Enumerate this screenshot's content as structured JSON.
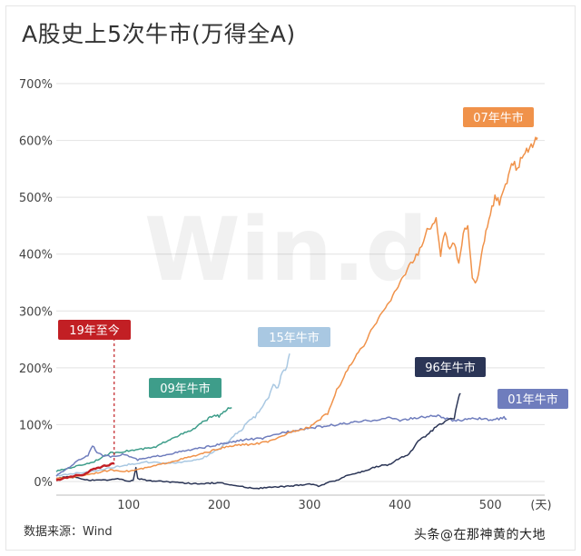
{
  "title": "A股史上5次牛市(万得全A)",
  "source": "数据来源：Wind",
  "watermark_text": "Win.d",
  "footer_mark": "头条@在那神黄的大地",
  "chart_data": {
    "type": "line",
    "title": "A股史上5次牛市(万得全A)",
    "xlabel": "(天)",
    "ylabel": "",
    "xlim": [
      20,
      560
    ],
    "ylim": [
      -8,
      700
    ],
    "x_ticks": [
      100,
      200,
      300,
      400,
      500
    ],
    "y_ticks": [
      0,
      100,
      200,
      300,
      400,
      500,
      600,
      700
    ],
    "y_tick_labels": [
      "0%",
      "100%",
      "200%",
      "300%",
      "400%",
      "500%",
      "600%",
      "700%"
    ],
    "grid": true,
    "series": [
      {
        "name": "07年牛市",
        "color": "#f0924a",
        "points": [
          [
            20,
            5
          ],
          [
            40,
            8
          ],
          [
            60,
            14
          ],
          [
            80,
            20
          ],
          [
            100,
            18
          ],
          [
            120,
            24
          ],
          [
            140,
            32
          ],
          [
            160,
            40
          ],
          [
            180,
            48
          ],
          [
            200,
            58
          ],
          [
            220,
            64
          ],
          [
            240,
            66
          ],
          [
            260,
            72
          ],
          [
            280,
            88
          ],
          [
            300,
            96
          ],
          [
            320,
            120
          ],
          [
            330,
            160
          ],
          [
            340,
            190
          ],
          [
            350,
            218
          ],
          [
            360,
            238
          ],
          [
            370,
            270
          ],
          [
            380,
            300
          ],
          [
            390,
            318
          ],
          [
            400,
            350
          ],
          [
            410,
            380
          ],
          [
            420,
            400
          ],
          [
            430,
            440
          ],
          [
            440,
            460
          ],
          [
            445,
            400
          ],
          [
            450,
            440
          ],
          [
            455,
            405
          ],
          [
            460,
            420
          ],
          [
            465,
            380
          ],
          [
            470,
            440
          ],
          [
            475,
            450
          ],
          [
            480,
            360
          ],
          [
            485,
            350
          ],
          [
            490,
            395
          ],
          [
            495,
            440
          ],
          [
            500,
            470
          ],
          [
            505,
            500
          ],
          [
            510,
            490
          ],
          [
            515,
            510
          ],
          [
            520,
            540
          ],
          [
            525,
            560
          ],
          [
            530,
            550
          ],
          [
            535,
            575
          ],
          [
            540,
            580
          ],
          [
            545,
            590
          ],
          [
            550,
            600
          ],
          [
            552,
            605
          ]
        ]
      },
      {
        "name": "96年牛市",
        "color": "#2b3556",
        "points": [
          [
            20,
            5
          ],
          [
            30,
            8
          ],
          [
            40,
            7
          ],
          [
            50,
            4
          ],
          [
            60,
            2
          ],
          [
            70,
            2
          ],
          [
            80,
            3
          ],
          [
            90,
            5
          ],
          [
            100,
            0
          ],
          [
            105,
            2
          ],
          [
            108,
            25
          ],
          [
            110,
            5
          ],
          [
            120,
            2
          ],
          [
            140,
            0
          ],
          [
            160,
            -3
          ],
          [
            180,
            -4
          ],
          [
            200,
            -2
          ],
          [
            220,
            -8
          ],
          [
            240,
            -12
          ],
          [
            260,
            -10
          ],
          [
            280,
            -8
          ],
          [
            300,
            -4
          ],
          [
            310,
            -8
          ],
          [
            320,
            -2
          ],
          [
            330,
            2
          ],
          [
            340,
            10
          ],
          [
            350,
            14
          ],
          [
            360,
            18
          ],
          [
            370,
            24
          ],
          [
            380,
            28
          ],
          [
            390,
            30
          ],
          [
            400,
            42
          ],
          [
            410,
            48
          ],
          [
            420,
            70
          ],
          [
            430,
            82
          ],
          [
            440,
            96
          ],
          [
            450,
            105
          ],
          [
            460,
            112
          ],
          [
            465,
            150
          ],
          [
            467,
            155
          ]
        ]
      },
      {
        "name": "15年牛市",
        "color": "#a9c8e2",
        "points": [
          [
            20,
            10
          ],
          [
            40,
            14
          ],
          [
            60,
            18
          ],
          [
            80,
            24
          ],
          [
            100,
            30
          ],
          [
            120,
            34
          ],
          [
            140,
            32
          ],
          [
            160,
            34
          ],
          [
            180,
            40
          ],
          [
            190,
            48
          ],
          [
            200,
            58
          ],
          [
            210,
            70
          ],
          [
            220,
            86
          ],
          [
            225,
            90
          ],
          [
            230,
            104
          ],
          [
            240,
            114
          ],
          [
            250,
            138
          ],
          [
            255,
            150
          ],
          [
            260,
            170
          ],
          [
            265,
            165
          ],
          [
            270,
            195
          ],
          [
            275,
            200
          ],
          [
            278,
            225
          ]
        ]
      },
      {
        "name": "09年牛市",
        "color": "#3e9d8a",
        "points": [
          [
            20,
            18
          ],
          [
            40,
            26
          ],
          [
            60,
            34
          ],
          [
            80,
            50
          ],
          [
            100,
            54
          ],
          [
            110,
            56
          ],
          [
            120,
            58
          ],
          [
            130,
            60
          ],
          [
            140,
            70
          ],
          [
            150,
            78
          ],
          [
            160,
            84
          ],
          [
            170,
            90
          ],
          [
            175,
            96
          ],
          [
            180,
            102
          ],
          [
            185,
            108
          ],
          [
            190,
            112
          ],
          [
            195,
            118
          ],
          [
            200,
            114
          ],
          [
            205,
            122
          ],
          [
            210,
            128
          ],
          [
            214,
            130
          ]
        ]
      },
      {
        "name": "01年牛市",
        "color": "#6f7dbd",
        "points": [
          [
            20,
            10
          ],
          [
            35,
            26
          ],
          [
            45,
            38
          ],
          [
            55,
            46
          ],
          [
            60,
            64
          ],
          [
            65,
            52
          ],
          [
            70,
            46
          ],
          [
            80,
            44
          ],
          [
            95,
            48
          ],
          [
            110,
            38
          ],
          [
            130,
            44
          ],
          [
            150,
            50
          ],
          [
            170,
            56
          ],
          [
            190,
            62
          ],
          [
            210,
            68
          ],
          [
            230,
            74
          ],
          [
            250,
            76
          ],
          [
            270,
            86
          ],
          [
            290,
            92
          ],
          [
            310,
            96
          ],
          [
            330,
            100
          ],
          [
            350,
            104
          ],
          [
            370,
            108
          ],
          [
            390,
            112
          ],
          [
            400,
            108
          ],
          [
            420,
            112
          ],
          [
            440,
            116
          ],
          [
            460,
            106
          ],
          [
            480,
            112
          ],
          [
            500,
            108
          ],
          [
            515,
            112
          ],
          [
            518,
            110
          ]
        ]
      },
      {
        "name": "19年至今",
        "color": "#c21f24",
        "points": [
          [
            20,
            2
          ],
          [
            30,
            6
          ],
          [
            40,
            10
          ],
          [
            50,
            12
          ],
          [
            55,
            16
          ],
          [
            60,
            22
          ],
          [
            65,
            24
          ],
          [
            70,
            26
          ],
          [
            75,
            28
          ],
          [
            80,
            30
          ],
          [
            84,
            32
          ]
        ]
      }
    ],
    "labels": [
      {
        "text": "07年牛市",
        "series": "07年牛市",
        "fill": "#f0924a",
        "text_color": "#ffffff"
      },
      {
        "text": "96年牛市",
        "series": "96年牛市",
        "fill": "#2b3556",
        "text_color": "#ffffff"
      },
      {
        "text": "15年牛市",
        "series": "15年牛市",
        "fill": "#a9c8e2",
        "text_color": "#ffffff"
      },
      {
        "text": "09年牛市",
        "series": "09年牛市",
        "fill": "#3e9d8a",
        "text_color": "#ffffff"
      },
      {
        "text": "01年牛市",
        "series": "01年牛市",
        "fill": "#6f7dbd",
        "text_color": "#ffffff"
      },
      {
        "text": "19年至今",
        "series": "19年至今",
        "fill": "#c21f24",
        "text_color": "#ffffff"
      }
    ],
    "annotation": {
      "type": "dashed-vertical-line",
      "series": "19年至今",
      "x": 84,
      "color": "#c21f24"
    }
  }
}
